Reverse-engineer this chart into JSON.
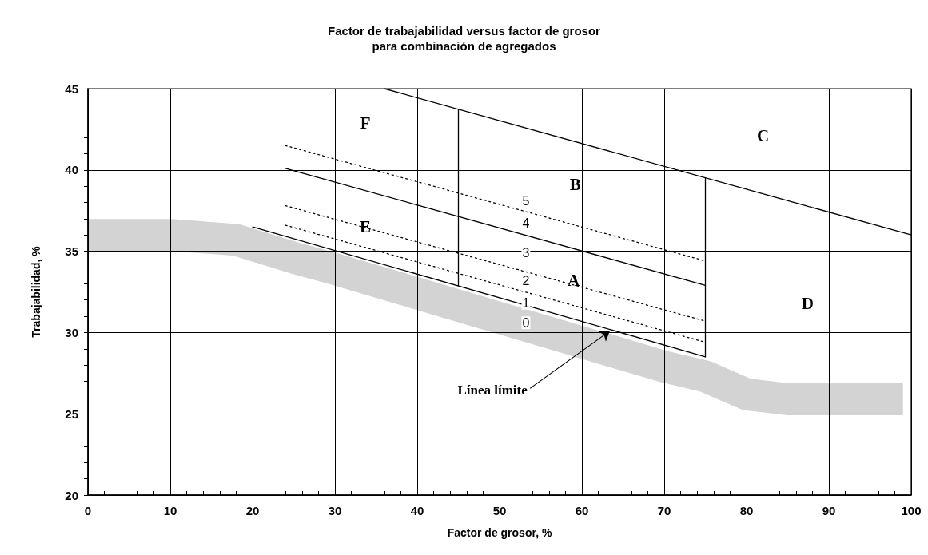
{
  "chart_data": {
    "type": "line",
    "title": "Factor de trabajabilidad versus factor de grosor\npara combinación de agregados",
    "xlabel": "Factor de grosor, %",
    "ylabel": "Trabajabilidad, %",
    "xlim": [
      0,
      100
    ],
    "ylim": [
      20,
      45
    ],
    "xticks": [
      0,
      {
        "value": 2,
        "label": null
      },
      {
        "value": 4,
        "label": null
      },
      {
        "value": 6,
        "label": null
      },
      {
        "value": 8,
        "label": null
      },
      10,
      {
        "value": 12,
        "label": null
      },
      {
        "value": 14,
        "label": null
      },
      {
        "value": 16,
        "label": null
      },
      {
        "value": 18,
        "label": null
      },
      20,
      {
        "value": 22,
        "label": null
      },
      {
        "value": 24,
        "label": null
      },
      {
        "value": 26,
        "label": null
      },
      {
        "value": 28,
        "label": null
      },
      30,
      {
        "value": 32,
        "label": null
      },
      {
        "value": 34,
        "label": null
      },
      {
        "value": 36,
        "label": null
      },
      {
        "value": 38,
        "label": null
      },
      40,
      {
        "value": 42,
        "label": null
      },
      {
        "value": 44,
        "label": null
      },
      {
        "value": 46,
        "label": null
      },
      {
        "value": 48,
        "label": null
      },
      50,
      {
        "value": 52,
        "label": null
      },
      {
        "value": 54,
        "label": null
      },
      {
        "value": 56,
        "label": null
      },
      {
        "value": 58,
        "label": null
      },
      60,
      {
        "value": 62,
        "label": null
      },
      {
        "value": 64,
        "label": null
      },
      {
        "value": 66,
        "label": null
      },
      {
        "value": 68,
        "label": null
      },
      70,
      {
        "value": 72,
        "label": null
      },
      {
        "value": 74,
        "label": null
      },
      {
        "value": 76,
        "label": null
      },
      {
        "value": 78,
        "label": null
      },
      80,
      {
        "value": 82,
        "label": null
      },
      {
        "value": 84,
        "label": null
      },
      {
        "value": 86,
        "label": null
      },
      {
        "value": 88,
        "label": null
      },
      90,
      {
        "value": 92,
        "label": null
      },
      {
        "value": 94,
        "label": null
      },
      {
        "value": 96,
        "label": null
      },
      {
        "value": 98,
        "label": null
      },
      100
    ],
    "yticks": [
      20,
      {
        "value": 21,
        "label": null
      },
      {
        "value": 22,
        "label": null
      },
      {
        "value": 23,
        "label": null
      },
      {
        "value": 24,
        "label": null
      },
      25,
      {
        "value": 26,
        "label": null
      },
      {
        "value": 27,
        "label": null
      },
      {
        "value": 28,
        "label": null
      },
      {
        "value": 29,
        "label": null
      },
      30,
      {
        "value": 31,
        "label": null
      },
      {
        "value": 32,
        "label": null
      },
      {
        "value": 33,
        "label": null
      },
      {
        "value": 34,
        "label": null
      },
      35,
      {
        "value": 36,
        "label": null
      },
      {
        "value": 37,
        "label": null
      },
      {
        "value": 38,
        "label": null
      },
      {
        "value": 39,
        "label": null
      },
      40,
      {
        "value": 41,
        "label": null
      },
      {
        "value": 42,
        "label": null
      },
      {
        "value": 43,
        "label": null
      },
      {
        "value": 44,
        "label": null
      },
      45
    ],
    "grid": true,
    "marker": "none",
    "line_style": "solid",
    "series": [
      {
        "color": "#d3d3d3",
        "x": [
          0,
          10,
          18,
          25,
          30,
          40,
          50,
          60,
          70,
          75,
          80,
          85,
          90,
          99
        ],
        "values": [
          36,
          36,
          35.7,
          34.6,
          33.9,
          32.4,
          30.9,
          29.4,
          27.9,
          27.3,
          26.2,
          25.9,
          25.9,
          25.9
        ]
      },
      {
        "color": "#000000",
        "x": [
          36,
          100
        ],
        "values": [
          45,
          36
        ]
      },
      {
        "color": "#000000",
        "x": [
          24,
          75
        ],
        "values": [
          40.1,
          32.9
        ]
      },
      {
        "color": "#000000",
        "x": [
          24,
          75
        ],
        "values": [
          41.5,
          34.4
        ],
        "line_style": "dotted"
      },
      {
        "color": "#000000",
        "x": [
          24,
          75
        ],
        "values": [
          37.8,
          30.7
        ],
        "line_style": "dotted"
      },
      {
        "color": "#000000",
        "x": [
          24,
          75
        ],
        "values": [
          36.6,
          29.4
        ],
        "line_style": "dotted"
      },
      {
        "color": "#000000",
        "x": [
          20,
          75
        ],
        "values": [
          36.5,
          28.5
        ]
      },
      {
        "color": "#000000",
        "x": [
          45,
          45
        ],
        "values": [
          43.7,
          32.9
        ]
      },
      {
        "color": "#000000",
        "x": [
          75,
          75
        ],
        "values": [
          39.5,
          28.5
        ]
      }
    ],
    "annotations": [
      "F",
      "C",
      "B",
      "E",
      "A",
      "D",
      "5",
      "4",
      "3",
      "2",
      "1",
      "0",
      {
        "text": "Línea límite",
        "x": 63.4,
        "y": 30.1
      }
    ]
  }
}
